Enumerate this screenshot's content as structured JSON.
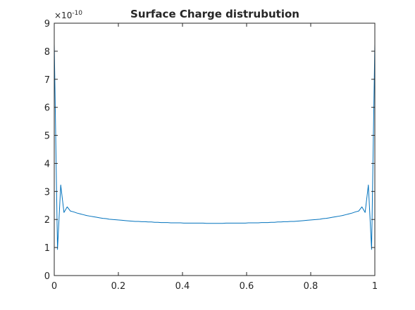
{
  "chart_data": {
    "type": "line",
    "title": "Surface Charge distrubution",
    "xlabel": "",
    "ylabel": "",
    "xlim": [
      0,
      1
    ],
    "ylim": [
      0,
      9
    ],
    "y_multiplier_label": "×10",
    "y_multiplier_exponent": "-10",
    "x_ticks": [
      "0",
      "0.2",
      "0.4",
      "0.6",
      "0.8",
      "1"
    ],
    "y_ticks": [
      "0",
      "1",
      "2",
      "3",
      "4",
      "5",
      "6",
      "7",
      "8",
      "9"
    ],
    "grid": false,
    "line_color": "#0072bd",
    "series": [
      {
        "x": [
          0,
          0.0101,
          0.0202,
          0.0303,
          0.0404,
          0.0505,
          0.0606,
          0.0707,
          0.0808,
          0.0909,
          0.101,
          0.1111,
          0.1212,
          0.1313,
          0.1414,
          0.1515,
          0.1616,
          0.1717,
          0.1818,
          0.1919,
          0.202,
          0.2121,
          0.2222,
          0.2323,
          0.2424,
          0.2525,
          0.2626,
          0.2727,
          0.2828,
          0.2929,
          0.303,
          0.3131,
          0.3232,
          0.3333,
          0.3434,
          0.3535,
          0.3636,
          0.3737,
          0.3838,
          0.3939,
          0.404,
          0.4141,
          0.4242,
          0.4343,
          0.4444,
          0.4545,
          0.4646,
          0.4747,
          0.4848,
          0.4949,
          0.5051,
          0.5152,
          0.5253,
          0.5354,
          0.5455,
          0.5556,
          0.5657,
          0.5758,
          0.5859,
          0.596,
          0.6061,
          0.6162,
          0.6263,
          0.6364,
          0.6465,
          0.6566,
          0.6667,
          0.6768,
          0.6869,
          0.697,
          0.7071,
          0.7172,
          0.7273,
          0.7374,
          0.7475,
          0.7576,
          0.7677,
          0.7778,
          0.7879,
          0.798,
          0.8081,
          0.8182,
          0.8283,
          0.8384,
          0.8485,
          0.8586,
          0.8687,
          0.8788,
          0.8889,
          0.899,
          0.9091,
          0.9192,
          0.9293,
          0.9394,
          0.9495,
          0.9596,
          0.9697,
          0.9798,
          0.9899,
          1
        ],
        "y": [
          8.27,
          0.93,
          3.23,
          2.25,
          2.45,
          2.3,
          2.27,
          2.23,
          2.2,
          2.17,
          2.14,
          2.12,
          2.1,
          2.08,
          2.06,
          2.04,
          2.03,
          2.01,
          2.0,
          1.99,
          1.98,
          1.97,
          1.96,
          1.95,
          1.94,
          1.93,
          1.93,
          1.92,
          1.92,
          1.91,
          1.91,
          1.9,
          1.9,
          1.89,
          1.89,
          1.89,
          1.88,
          1.88,
          1.88,
          1.88,
          1.87,
          1.87,
          1.87,
          1.87,
          1.87,
          1.87,
          1.87,
          1.86,
          1.86,
          1.86,
          1.86,
          1.86,
          1.86,
          1.87,
          1.87,
          1.87,
          1.87,
          1.87,
          1.87,
          1.87,
          1.88,
          1.88,
          1.88,
          1.88,
          1.89,
          1.89,
          1.89,
          1.9,
          1.9,
          1.91,
          1.91,
          1.92,
          1.92,
          1.93,
          1.93,
          1.94,
          1.95,
          1.96,
          1.97,
          1.98,
          1.99,
          2.0,
          2.01,
          2.03,
          2.04,
          2.06,
          2.08,
          2.1,
          2.12,
          2.14,
          2.17,
          2.2,
          2.23,
          2.27,
          2.3,
          2.45,
          2.25,
          3.23,
          0.93,
          8.27
        ]
      }
    ]
  }
}
